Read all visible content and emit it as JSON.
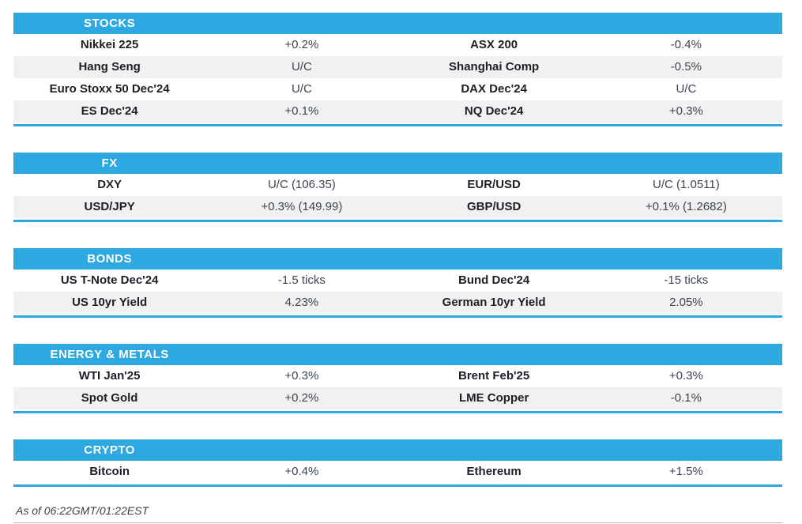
{
  "colors": {
    "accent_blue": "#2EA8E0",
    "alt_row_gray": "#F1F1F1",
    "header_text": "#FFFFFF",
    "label_text": "#1D1F26",
    "value_text": "#3D4350",
    "footer_text": "#3F3F3F",
    "hairline_gray": "#B4B4B4"
  },
  "footer": {
    "note": "As of 06:22GMT/01:22EST"
  },
  "sections": [
    {
      "title": "STOCKS",
      "rows": [
        [
          "Nikkei 225",
          "+0.2%",
          "ASX 200",
          "-0.4%"
        ],
        [
          "Hang Seng",
          "U/C",
          "Shanghai Comp",
          "-0.5%"
        ],
        [
          "Euro Stoxx 50 Dec'24",
          "U/C",
          "DAX Dec'24",
          "U/C"
        ],
        [
          "ES Dec'24",
          "+0.1%",
          "NQ Dec'24",
          "+0.3%"
        ]
      ]
    },
    {
      "title": "FX",
      "rows": [
        [
          "DXY",
          "U/C (106.35)",
          "EUR/USD",
          "U/C (1.0511)"
        ],
        [
          "USD/JPY",
          "+0.3% (149.99)",
          "GBP/USD",
          "+0.1% (1.2682)"
        ]
      ]
    },
    {
      "title": "BONDS",
      "rows": [
        [
          "US T-Note Dec'24",
          "-1.5 ticks",
          "Bund Dec'24",
          "-15 ticks"
        ],
        [
          "US 10yr Yield",
          "4.23%",
          "German 10yr Yield",
          "2.05%"
        ]
      ]
    },
    {
      "title": "ENERGY & METALS",
      "rows": [
        [
          "WTI Jan'25",
          "+0.3%",
          "Brent Feb'25",
          "+0.3%"
        ],
        [
          "Spot Gold",
          "+0.2%",
          "LME Copper",
          "-0.1%"
        ]
      ]
    },
    {
      "title": "CRYPTO",
      "rows": [
        [
          "Bitcoin",
          "+0.4%",
          "Ethereum",
          "+1.5%"
        ]
      ]
    }
  ]
}
